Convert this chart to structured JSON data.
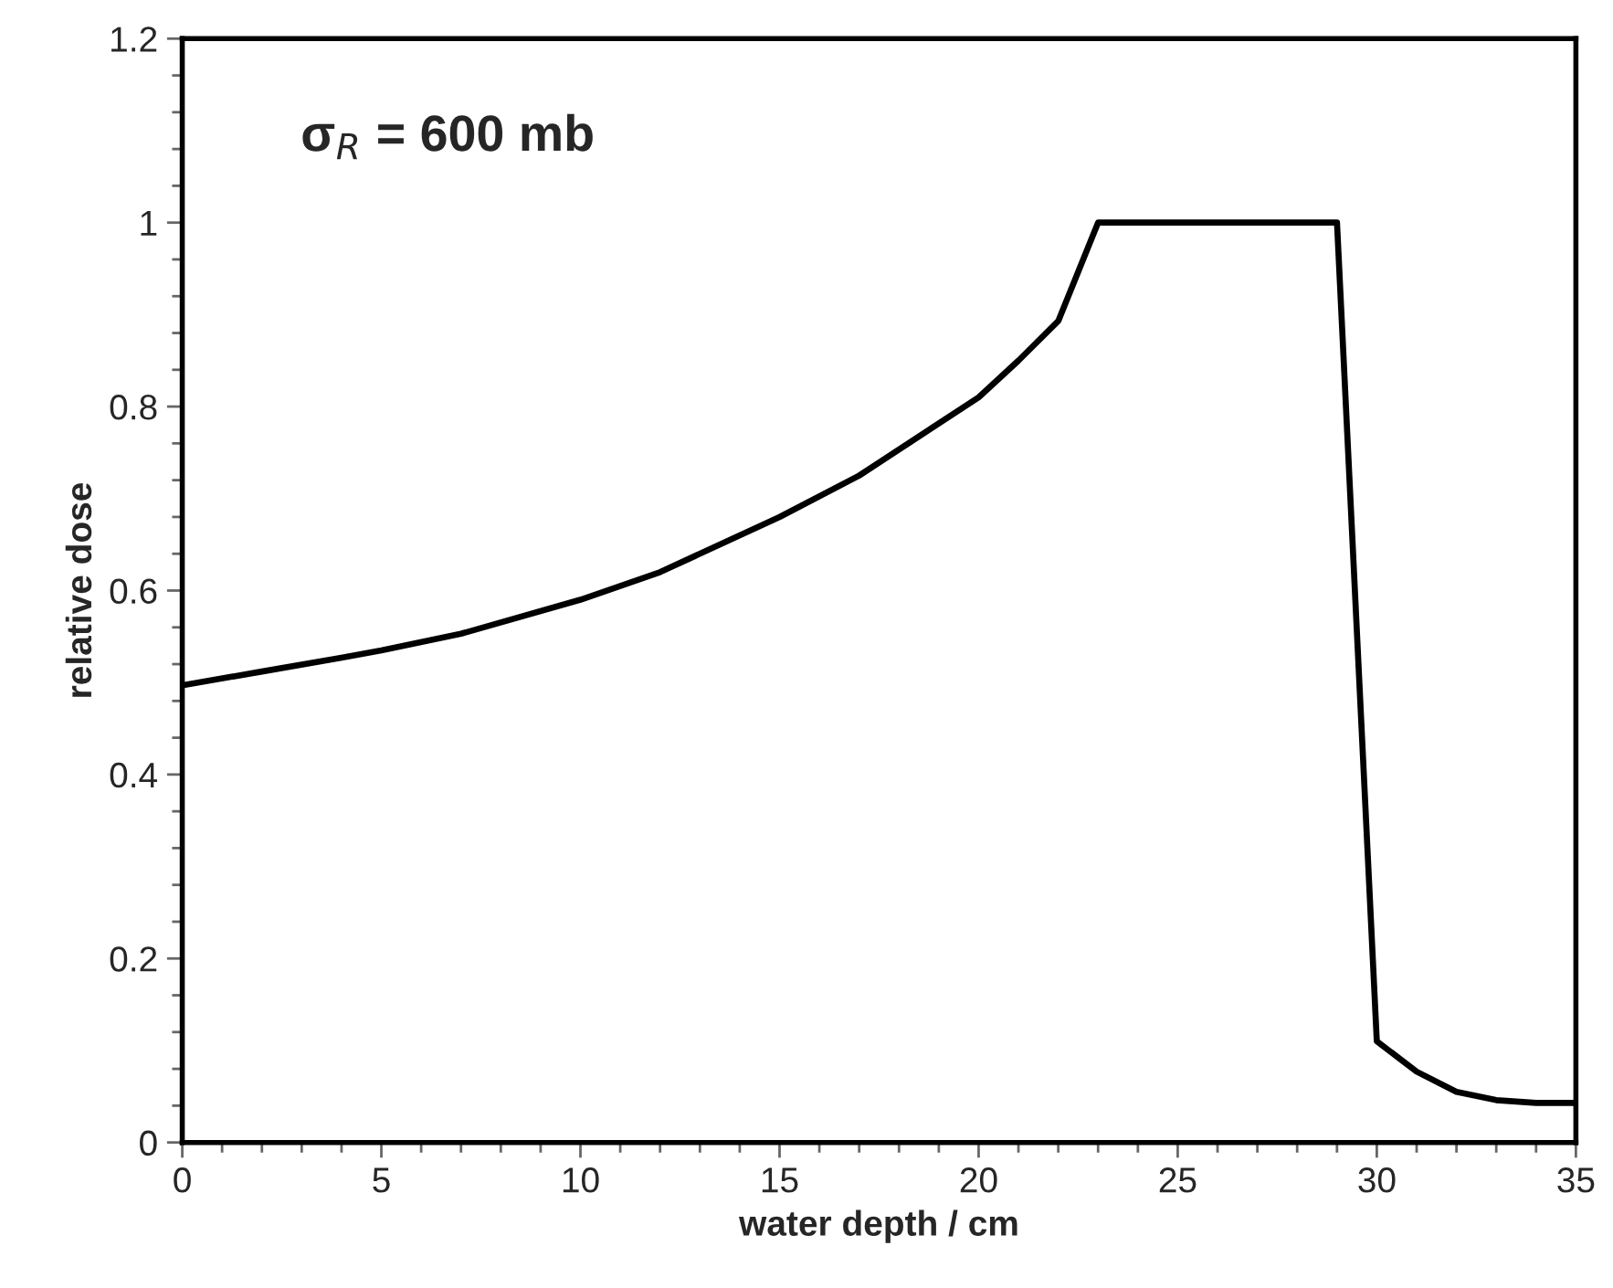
{
  "chart_data": {
    "type": "line",
    "xlabel": "water depth / cm",
    "ylabel": "relative dose",
    "annotations": [
      "σ$_{R}$ = 600 mb"
    ],
    "x": [
      0,
      2,
      4,
      5,
      7,
      10,
      12,
      15,
      17,
      20,
      21,
      22,
      23,
      29,
      30,
      31,
      32,
      33,
      34,
      35
    ],
    "series": [
      {
        "color": "#000000",
        "values": [
          0.497,
          0.512,
          0.527,
          0.535,
          0.553,
          0.59,
          0.62,
          0.68,
          0.725,
          0.81,
          0.85,
          0.893,
          1.0,
          1.0,
          0.11,
          0.077,
          0.055,
          0.046,
          0.043,
          0.043
        ]
      }
    ],
    "xlim": [
      0,
      35
    ],
    "xticks": [
      0,
      5,
      10,
      15,
      20,
      25,
      30,
      35
    ],
    "ylim": [
      0,
      1.2
    ],
    "yticks": [
      0,
      0.2,
      0.4,
      0.6,
      0.8,
      1,
      1.2
    ],
    "grid": false,
    "legend": false,
    "marker": "none",
    "line_style": "solid"
  }
}
